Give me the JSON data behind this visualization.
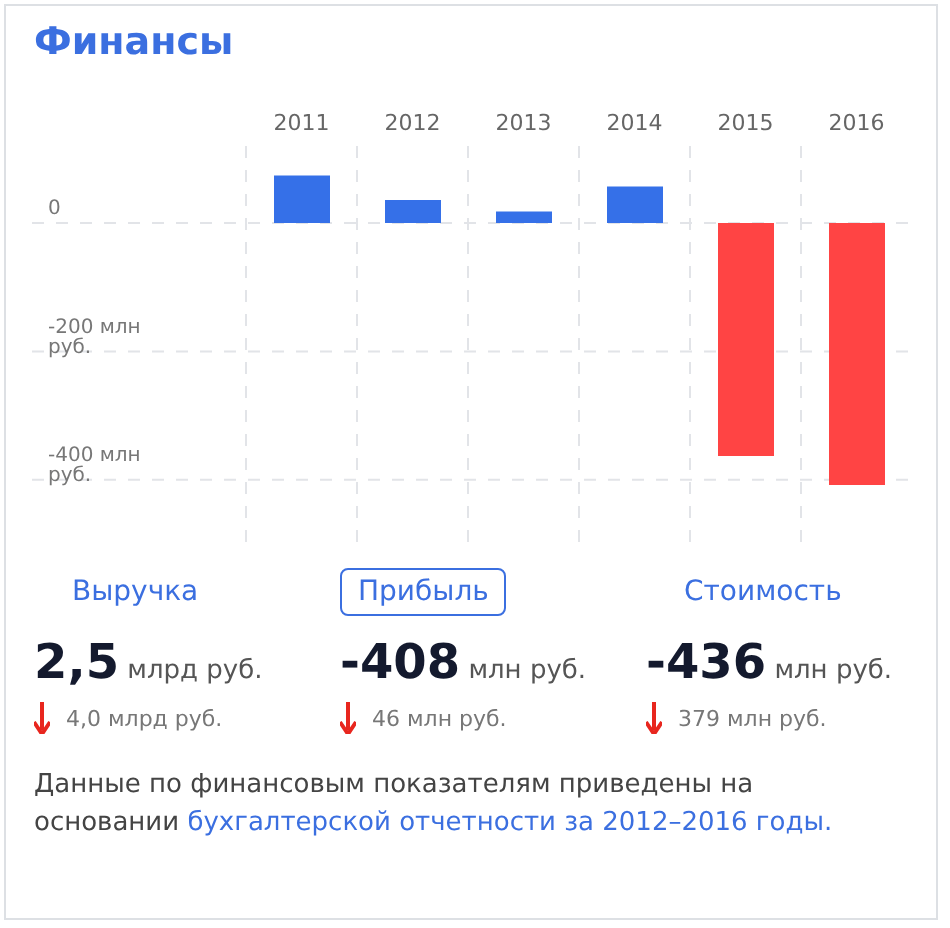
{
  "chart_data": [
    {
      "type": "bar",
      "title": "Финансы",
      "categories": [
        "2011",
        "2012",
        "2013",
        "2014",
        "2015",
        "2016"
      ],
      "values": [
        74,
        36,
        18,
        57,
        -363,
        -408
      ],
      "colors": [
        "#3570e8",
        "#3570e8",
        "#3570e8",
        "#3570e8",
        "#ff4444",
        "#ff4444"
      ],
      "ylim": [
        -500,
        120
      ],
      "yticks": [
        {
          "value": 0,
          "label": "0"
        },
        {
          "value": -200,
          "label": "-200 млн руб."
        },
        {
          "value": -400,
          "label": "-400 млн руб."
        }
      ],
      "grid": true
    },
    {
      "type": "other",
      "categories": [
        "Выручка",
        "Прибыль",
        "Стоимость"
      ],
      "annotations": [
        "2,5 млрд руб.",
        "-408 млн руб.",
        "-436 млн руб.",
        "4,0 млрд руб.",
        "46 млн руб.",
        "379 млн руб.",
        "Данные по финансовым показателям приведены на основании ",
        "бухгалтерской отчетности за 2012–2016 годы."
      ]
    }
  ]
}
